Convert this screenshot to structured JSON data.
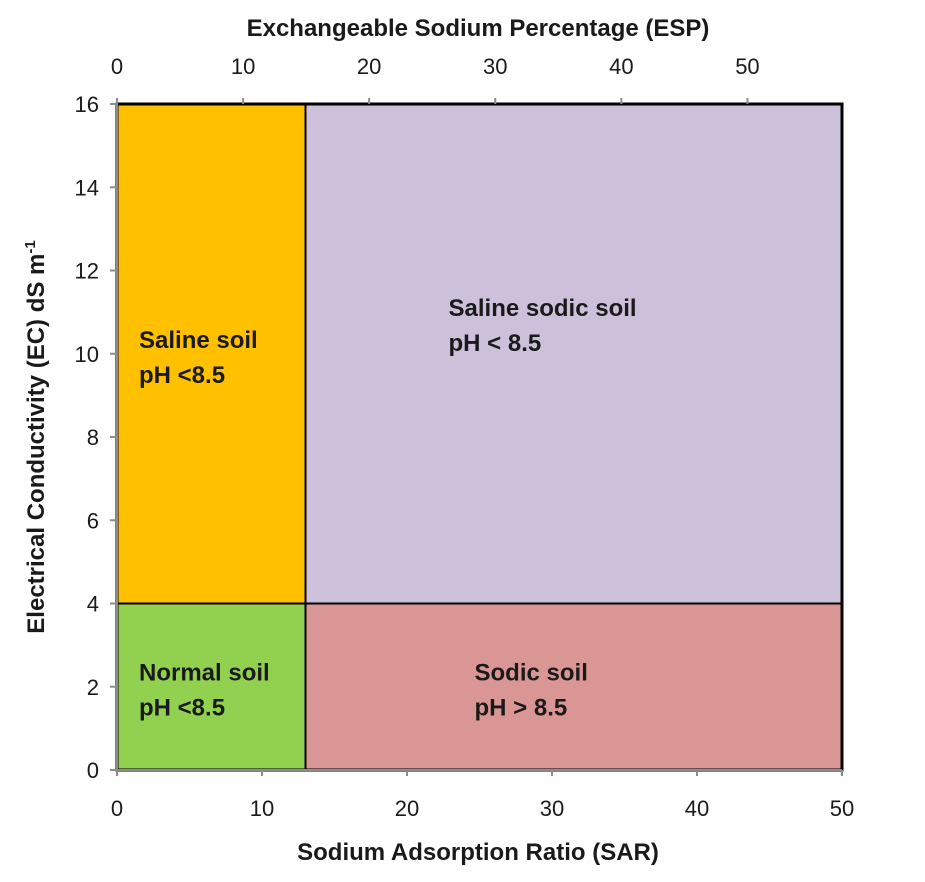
{
  "chart_data": {
    "type": "region-diagram",
    "title": "",
    "top_axis": {
      "label": "Exchangeable Sodium Percentage (ESP)",
      "ticks": [
        "0",
        "10",
        "20",
        "30",
        "40",
        "50"
      ],
      "range": [
        0,
        57.5
      ]
    },
    "x_axis": {
      "label": "Sodium Adsorption Ratio (SAR)",
      "ticks": [
        "0",
        "10",
        "20",
        "30",
        "40",
        "50"
      ],
      "range": [
        0,
        50
      ]
    },
    "y_axis": {
      "label": "Electrical Conductivity (EC) dS m",
      "label_superscript": "-1",
      "ticks": [
        "0",
        "2",
        "4",
        "6",
        "8",
        "10",
        "12",
        "14",
        "16"
      ],
      "range": [
        0,
        16
      ]
    },
    "grid": false,
    "regions": [
      {
        "name": "Saline soil",
        "condition": "pH <8.5",
        "sar_range": [
          0,
          13
        ],
        "ec_range": [
          4,
          16
        ],
        "color": "#FFC000"
      },
      {
        "name": "Saline sodic soil",
        "condition": "pH < 8.5",
        "sar_range": [
          13,
          50
        ],
        "ec_range": [
          4,
          16
        ],
        "color": "#CCC0DA"
      },
      {
        "name": "Normal soil",
        "condition": "pH <8.5",
        "sar_range": [
          0,
          13
        ],
        "ec_range": [
          0,
          4
        ],
        "color": "#92D050"
      },
      {
        "name": "Sodic soil",
        "condition": "pH > 8.5",
        "sar_range": [
          13,
          50
        ],
        "ec_range": [
          0,
          4
        ],
        "color": "#DA9694"
      }
    ]
  }
}
